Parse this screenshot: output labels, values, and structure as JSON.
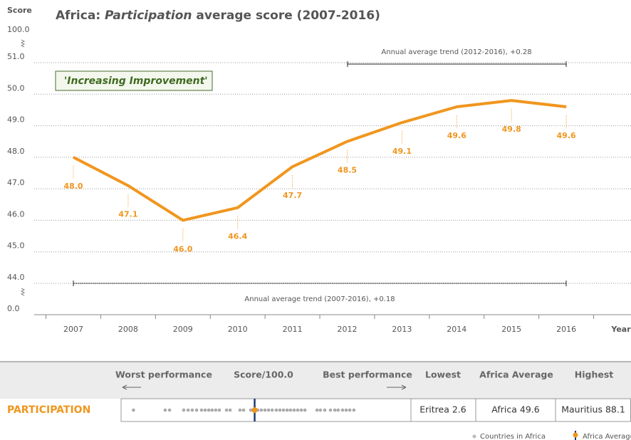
{
  "chart_data": {
    "type": "line",
    "title_parts": [
      "Africa: ",
      "Participation",
      " average score (2007-2016)"
    ],
    "y_axis_label": "Score",
    "x_axis_label": "Year",
    "categories": [
      "2007",
      "2008",
      "2009",
      "2010",
      "2011",
      "2012",
      "2013",
      "2014",
      "2015",
      "2016"
    ],
    "series": [
      {
        "name": "Africa",
        "color": "#f0961e",
        "values": [
          48.0,
          47.1,
          46.0,
          46.4,
          47.7,
          48.5,
          49.1,
          49.6,
          49.8,
          49.6
        ],
        "value_labels": [
          "48.0",
          "47.1",
          "46.0",
          "46.4",
          "47.7",
          "48.5",
          "49.1",
          "49.6",
          "49.8",
          "49.6"
        ]
      }
    ],
    "ylim": [
      44,
      51
    ],
    "yticks": [
      {
        "value": 44,
        "label": "44.0"
      },
      {
        "value": 45,
        "label": "45.0"
      },
      {
        "value": 46,
        "label": "46.0"
      },
      {
        "value": 47,
        "label": "47.0"
      },
      {
        "value": 48,
        "label": "48.0"
      },
      {
        "value": 49,
        "label": "49.0"
      },
      {
        "value": 50,
        "label": "50.0"
      },
      {
        "value": 51,
        "label": "51.0"
      }
    ],
    "y_break_ticks": {
      "bottom": {
        "value": 0,
        "label": "0.0"
      },
      "top": {
        "value": 100,
        "label": "100.0"
      }
    },
    "grid": true,
    "annotations": {
      "badge": "'Increasing Improvement'",
      "trend_recent": "Annual average trend (2012-2016), +0.28",
      "trend_full": "Annual average trend (2007-2016), +0.18"
    }
  },
  "scorecard": {
    "headers": {
      "worst": "Worst performance",
      "score": "Score/100.0",
      "best": "Best performance",
      "lowest": "Lowest",
      "average": "Africa Average",
      "highest": "Highest"
    },
    "indicator": "PARTICIPATION",
    "lowest": "Eritrea 2.6",
    "average_text": "Africa 49.6",
    "highest": "Mauritius 88.1",
    "strip": {
      "xlim": [
        0,
        100
      ],
      "average": 49.6,
      "country_scores": [
        2.6,
        14.9,
        16.6,
        22.1,
        23.8,
        25.4,
        27.1,
        29.0,
        30.4,
        31.8,
        33.1,
        34.5,
        35.9,
        38.7,
        40.1,
        43.9,
        45.3,
        48.1,
        50.8,
        52.2,
        53.6,
        55.0,
        56.4,
        58.0,
        59.4,
        60.8,
        62.2,
        63.5,
        64.9,
        66.3,
        67.7,
        69.1,
        73.8,
        75.1,
        76.8,
        79.0,
        80.7,
        82.0,
        83.7,
        85.1,
        86.5,
        88.1
      ]
    },
    "legend": {
      "countries": "Countries in Africa",
      "average": "Africa Average"
    }
  }
}
